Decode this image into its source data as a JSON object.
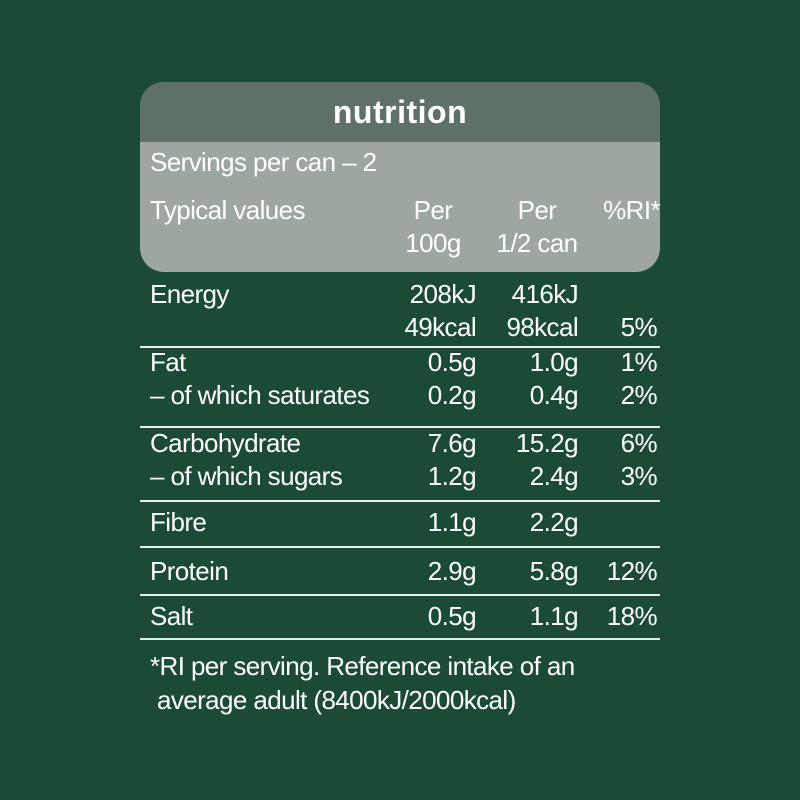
{
  "header": {
    "title": "nutrition",
    "servings": "Servings per can – 2",
    "columns": [
      [
        "Typical values"
      ],
      [
        "Per",
        "100g"
      ],
      [
        "Per",
        "1/2 can"
      ],
      [
        "%RI*"
      ]
    ]
  },
  "table": {
    "groups": [
      [
        [
          "Energy"
        ],
        [
          "208kJ",
          "49kcal"
        ],
        [
          "416kJ",
          "98kcal"
        ],
        [
          "5%"
        ]
      ],
      [
        [
          "Fat",
          "– of which saturates"
        ],
        [
          "0.5g",
          "0.2g"
        ],
        [
          "1.0g",
          "0.4g"
        ],
        [
          "1%",
          "2%"
        ]
      ],
      [
        [
          "Carbohydrate",
          "– of which sugars"
        ],
        [
          "7.6g",
          "1.2g"
        ],
        [
          "15.2g",
          "2.4g"
        ],
        [
          "6%",
          "3%"
        ]
      ],
      [
        [
          "Fibre"
        ],
        [
          "1.1g"
        ],
        [
          "2.2g"
        ],
        []
      ],
      [
        [
          "Protein"
        ],
        [
          "2.9g"
        ],
        [
          "5.8g"
        ],
        [
          "12%"
        ]
      ],
      [
        [
          "Salt"
        ],
        [
          "0.5g"
        ],
        [
          "1.1g"
        ],
        [
          "18%"
        ]
      ]
    ]
  },
  "footnote": [
    "*RI per serving. Reference intake of an",
    "average adult (8400kJ/2000kcal)"
  ]
}
